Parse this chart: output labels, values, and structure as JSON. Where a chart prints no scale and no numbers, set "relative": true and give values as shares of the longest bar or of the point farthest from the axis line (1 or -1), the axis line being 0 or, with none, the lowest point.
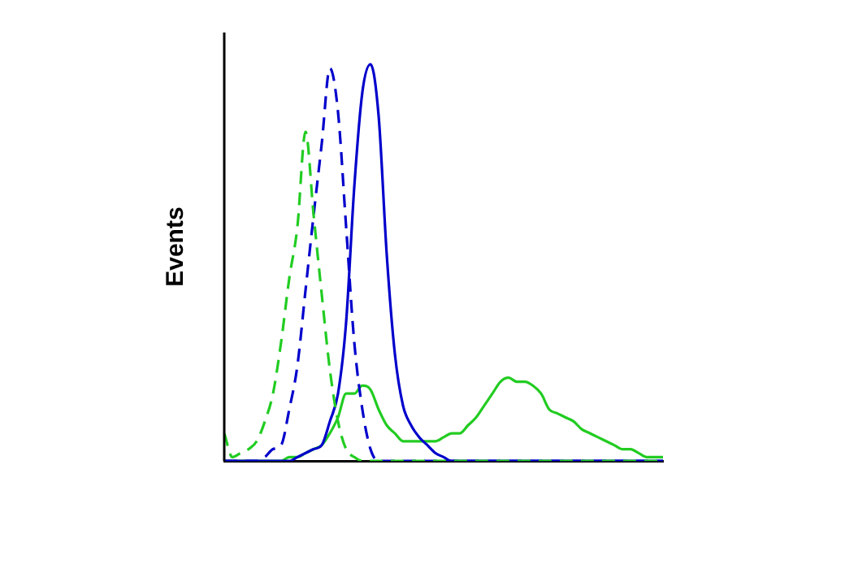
{
  "chart_data": {
    "type": "line",
    "relative": true,
    "ylabel": "Events",
    "categories": [
      null,
      null,
      null,
      null,
      null,
      null,
      null,
      null,
      null,
      null,
      null,
      null,
      null,
      null,
      null,
      null,
      null,
      null,
      null,
      null,
      null,
      null,
      null,
      null,
      null,
      null,
      null,
      null,
      null,
      null,
      null,
      null,
      null,
      null,
      null,
      null,
      null,
      null,
      null,
      null,
      null,
      null,
      null,
      null,
      null,
      null,
      null,
      null,
      null,
      null,
      null,
      null,
      null,
      null,
      null
    ],
    "series": [
      {
        "color": "#22cc22",
        "line_style": "dashed",
        "values": [
          0.07,
          0.01,
          0.02,
          0.03,
          0.05,
          0.1,
          0.17,
          0.3,
          0.46,
          0.59,
          0.83,
          0.62,
          0.42,
          0.23,
          0.1,
          0.03,
          0.01,
          0,
          0,
          0,
          0,
          0,
          0,
          0,
          0,
          0,
          0,
          0,
          0,
          0,
          0,
          0,
          0,
          0,
          0,
          0,
          0,
          0,
          0,
          0,
          0,
          0,
          0,
          0,
          0,
          0,
          0,
          0,
          0,
          0,
          0,
          0,
          0,
          0,
          0
        ]
      },
      {
        "color": "#0000cc",
        "line_style": "dashed",
        "values": [
          0,
          0,
          0,
          0,
          0,
          0.01,
          0.03,
          0.04,
          0.13,
          0.24,
          0.43,
          0.62,
          0.8,
          0.99,
          0.88,
          0.59,
          0.3,
          0.13,
          0.03,
          0,
          0,
          0,
          0,
          0,
          0,
          0,
          0,
          0,
          0,
          0,
          0,
          0,
          0,
          0,
          0,
          0,
          0,
          0,
          0,
          0,
          0,
          0,
          0,
          0,
          0,
          0,
          0,
          0,
          0,
          0,
          0,
          0,
          0,
          0,
          0
        ]
      },
      {
        "color": "#0000cc",
        "line_style": "solid",
        "values": [
          0,
          0,
          0,
          0,
          0,
          0,
          0,
          0,
          0,
          0.01,
          0.02,
          0.03,
          0.04,
          0.1,
          0.17,
          0.35,
          0.69,
          0.93,
          1,
          0.87,
          0.52,
          0.27,
          0.14,
          0.09,
          0.06,
          0.04,
          0.02,
          0.01,
          0,
          0,
          0,
          0,
          0,
          0,
          0,
          0,
          0,
          0,
          0,
          0,
          0,
          0,
          0,
          0,
          0,
          0,
          0,
          0,
          0,
          0,
          0,
          0,
          0,
          0,
          0
        ]
      },
      {
        "color": "#22cc22",
        "line_style": "solid",
        "values": [
          0,
          0,
          0,
          0,
          0,
          0,
          0,
          0,
          0.01,
          0.01,
          0.02,
          0.03,
          0.04,
          0.07,
          0.11,
          0.17,
          0.17,
          0.19,
          0.18,
          0.13,
          0.09,
          0.07,
          0.05,
          0.05,
          0.05,
          0.05,
          0.05,
          0.06,
          0.07,
          0.07,
          0.09,
          0.11,
          0.14,
          0.17,
          0.2,
          0.21,
          0.2,
          0.2,
          0.19,
          0.17,
          0.13,
          0.12,
          0.11,
          0.1,
          0.08,
          0.07,
          0.06,
          0.05,
          0.04,
          0.03,
          0.03,
          0.02,
          0.01,
          0.01,
          0.01
        ]
      }
    ]
  }
}
